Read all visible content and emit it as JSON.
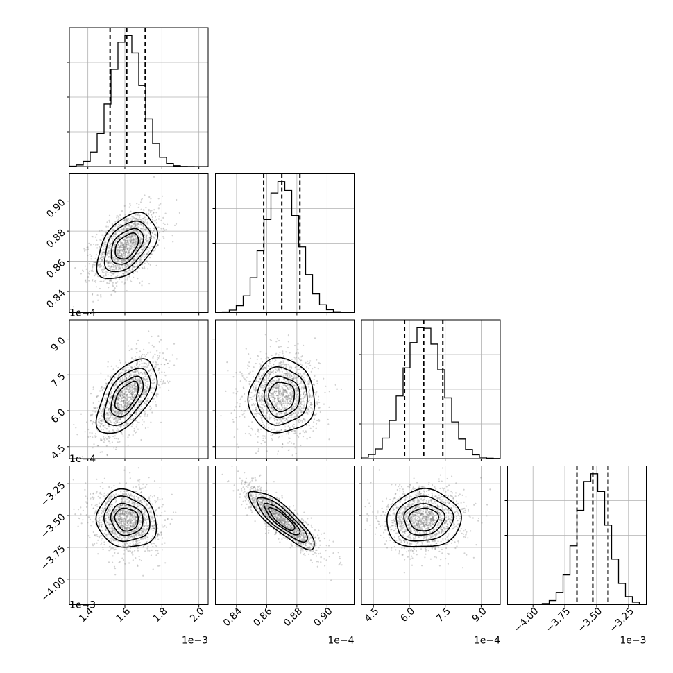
{
  "chart_data": {
    "type": "corner",
    "grid_enabled": true,
    "parameters": [
      {
        "index": 0,
        "range": [
          1.3,
          2.05
        ],
        "ticks": [
          1.4,
          1.6,
          1.8,
          2.0
        ],
        "tick_labels": [
          "1.4",
          "1.6",
          "1.8",
          "2.0"
        ],
        "offset_text": "1e−3",
        "mean": 1.61,
        "sd": 0.085,
        "quantiles": [
          1.52,
          1.61,
          1.71
        ]
      },
      {
        "index": 1,
        "range": [
          0.826,
          0.918
        ],
        "ticks": [
          0.84,
          0.86,
          0.88,
          0.9
        ],
        "tick_labels": [
          "0.84",
          "0.86",
          "0.88",
          "0.90"
        ],
        "offset_text": "1e−4",
        "mean": 0.87,
        "sd": 0.0115,
        "quantiles": [
          0.858,
          0.87,
          0.882
        ]
      },
      {
        "index": 2,
        "range": [
          4.0,
          9.8
        ],
        "ticks": [
          4.5,
          6.0,
          7.5,
          9.0
        ],
        "tick_labels": [
          "4.5",
          "6.0",
          "7.5",
          "9.0"
        ],
        "offset_text": "1e−4",
        "mean": 6.6,
        "sd": 0.82,
        "quantiles": [
          5.8,
          6.6,
          7.4
        ]
      },
      {
        "index": 3,
        "range": [
          -4.2,
          -3.11
        ],
        "ticks": [
          -4.0,
          -3.75,
          -3.5,
          -3.25
        ],
        "tick_labels": [
          "−4.00",
          "−3.75",
          "−3.50",
          "−3.25"
        ],
        "offset_text": "1e−3",
        "mean": -3.53,
        "sd": 0.12,
        "quantiles": [
          -3.655,
          -3.53,
          -3.41
        ]
      }
    ],
    "correlations": {
      "1_0": 0.45,
      "2_0": 0.55,
      "2_1": 0.0,
      "3_0": -0.1,
      "3_1": -0.85,
      "3_2": 0.05
    },
    "contour_levels_sigma": [
      0.5,
      1.0,
      1.5,
      2.0
    ],
    "hist_bins": 20,
    "scatter_points_per_panel": 1400
  }
}
